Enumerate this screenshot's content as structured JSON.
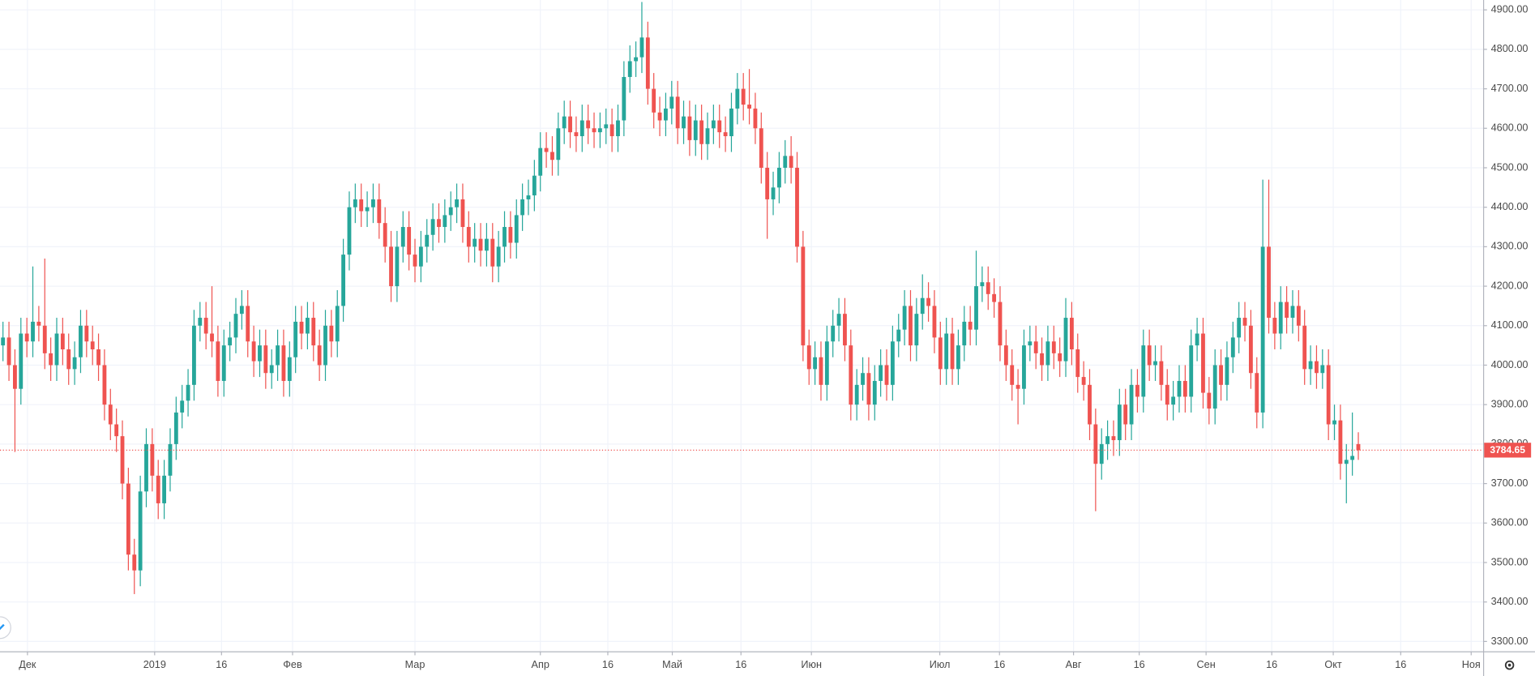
{
  "chart_data": {
    "type": "candlestick",
    "up_color": "#26a69a",
    "down_color": "#ef5350",
    "grid": true,
    "xlim": [
      -0.5,
      247.9
    ],
    "xticks": [
      {
        "value": 4.1,
        "label": "Дек"
      },
      {
        "value": 25.4,
        "label": "2019"
      },
      {
        "value": 36.6,
        "label": "16"
      },
      {
        "value": 48.5,
        "label": "Фев"
      },
      {
        "value": 69,
        "label": "Мар"
      },
      {
        "value": 90,
        "label": "Апр"
      },
      {
        "value": 101.3,
        "label": "16"
      },
      {
        "value": 112.1,
        "label": "Май"
      },
      {
        "value": 123.6,
        "label": "16"
      },
      {
        "value": 135.4,
        "label": "Июн"
      },
      {
        "value": 156.9,
        "label": "Июл"
      },
      {
        "value": 166.9,
        "label": "16"
      },
      {
        "value": 179.3,
        "label": "Авг"
      },
      {
        "value": 190.3,
        "label": "16"
      },
      {
        "value": 201.5,
        "label": "Сен"
      },
      {
        "value": 212.5,
        "label": "16"
      },
      {
        "value": 222.8,
        "label": "Окт"
      },
      {
        "value": 234.1,
        "label": "16"
      },
      {
        "value": 245.9,
        "label": "Ноя"
      }
    ],
    "ylim": [
      3275,
      4925
    ],
    "yticks": [
      {
        "value": 3300,
        "label": "3300.00"
      },
      {
        "value": 3400,
        "label": "3400.00"
      },
      {
        "value": 3500,
        "label": "3500.00"
      },
      {
        "value": 3600,
        "label": "3600.00"
      },
      {
        "value": 3700,
        "label": "3700.00"
      },
      {
        "value": 3800,
        "label": "3800.00"
      },
      {
        "value": 3900,
        "label": "3900.00"
      },
      {
        "value": 4000,
        "label": "4000.00"
      },
      {
        "value": 4100,
        "label": "4100.00"
      },
      {
        "value": 4200,
        "label": "4200.00"
      },
      {
        "value": 4300,
        "label": "4300.00"
      },
      {
        "value": 4400,
        "label": "4400.00"
      },
      {
        "value": 4500,
        "label": "4500.00"
      },
      {
        "value": 4600,
        "label": "4600.00"
      },
      {
        "value": 4700,
        "label": "4700.00"
      },
      {
        "value": 4800,
        "label": "4800.00"
      },
      {
        "value": 4900,
        "label": "4900.00"
      }
    ],
    "last_price": 3784.65,
    "open": [
      4050,
      4070,
      4000,
      3940,
      4080,
      4060,
      4110,
      4100,
      4030,
      4000,
      4080,
      4040,
      3990,
      4020,
      4100,
      4060,
      4040,
      4000,
      3900,
      3850,
      3820,
      3700,
      3520,
      3480,
      3680,
      3800,
      3720,
      3650,
      3720,
      3800,
      3880,
      3910,
      3950,
      4100,
      4120,
      4080,
      4060,
      3960,
      4050,
      4070,
      4130,
      4150,
      4060,
      4010,
      4050,
      3980,
      4000,
      4050,
      3960,
      4020,
      4110,
      4080,
      4120,
      4050,
      4000,
      4100,
      4060,
      4150,
      4280,
      4400,
      4420,
      4390,
      4400,
      4420,
      4360,
      4300,
      4200,
      4300,
      4350,
      4280,
      4250,
      4300,
      4330,
      4370,
      4350,
      4380,
      4400,
      4420,
      4350,
      4300,
      4320,
      4290,
      4320,
      4250,
      4300,
      4350,
      4310,
      4380,
      4420,
      4430,
      4480,
      4550,
      4540,
      4520,
      4600,
      4630,
      4590,
      4580,
      4620,
      4600,
      4590,
      4600,
      4610,
      4580,
      4620,
      4730,
      4770,
      4780,
      4830,
      4700,
      4640,
      4620,
      4650,
      4680,
      4600,
      4630,
      4570,
      4620,
      4560,
      4600,
      4620,
      4590,
      4580,
      4650,
      4700,
      4660,
      4650,
      4600,
      4500,
      4420,
      4450,
      4500,
      4530,
      4500,
      4300,
      4050,
      3990,
      4020,
      3950,
      4060,
      4100,
      4130,
      4050,
      3900,
      3950,
      3980,
      3900,
      3960,
      4000,
      3950,
      4060,
      4090,
      4150,
      4050,
      4130,
      4170,
      4150,
      4070,
      3990,
      4080,
      3990,
      4050,
      4110,
      4090,
      4200,
      4210,
      4180,
      4160,
      4050,
      4000,
      3950,
      3940,
      4050,
      4060,
      4030,
      4000,
      4060,
      4030,
      4010,
      4120,
      4040,
      3970,
      3950,
      3850,
      3750,
      3800,
      3820,
      3810,
      3900,
      3850,
      3950,
      3920,
      4050,
      4000,
      4010,
      3950,
      3900,
      3920,
      3960,
      3920,
      4050,
      4080,
      3930,
      3890,
      4000,
      3950,
      4020,
      4070,
      4120,
      4100,
      3980,
      3880,
      4300,
      4120,
      4080,
      4160,
      4120,
      4150,
      4100,
      3990,
      4010,
      3980,
      4000,
      3850,
      3860,
      3750,
      3760,
      3800
    ],
    "high": [
      4110,
      4110,
      4040,
      4120,
      4120,
      4250,
      4150,
      4270,
      4070,
      4120,
      4120,
      4080,
      4060,
      4140,
      4140,
      4100,
      4080,
      4040,
      3940,
      3890,
      3860,
      3740,
      3560,
      3720,
      3840,
      3840,
      3760,
      3760,
      3840,
      3920,
      3950,
      3990,
      4140,
      4160,
      4160,
      4200,
      4100,
      4090,
      4110,
      4170,
      4190,
      4190,
      4100,
      4090,
      4090,
      4040,
      4090,
      4090,
      4060,
      4150,
      4150,
      4160,
      4160,
      4090,
      4140,
      4140,
      4190,
      4320,
      4440,
      4460,
      4460,
      4440,
      4460,
      4460,
      4400,
      4340,
      4340,
      4390,
      4390,
      4320,
      4340,
      4370,
      4410,
      4410,
      4420,
      4440,
      4460,
      4460,
      4390,
      4360,
      4360,
      4360,
      4360,
      4340,
      4390,
      4390,
      4420,
      4460,
      4470,
      4520,
      4590,
      4590,
      4580,
      4640,
      4670,
      4670,
      4630,
      4660,
      4660,
      4640,
      4640,
      4650,
      4650,
      4660,
      4770,
      4810,
      4820,
      4920,
      4870,
      4740,
      4680,
      4690,
      4720,
      4720,
      4670,
      4670,
      4660,
      4660,
      4640,
      4660,
      4660,
      4630,
      4690,
      4740,
      4740,
      4750,
      4690,
      4640,
      4540,
      4490,
      4540,
      4570,
      4580,
      4540,
      4340,
      4090,
      4060,
      4060,
      4100,
      4140,
      4170,
      4170,
      4090,
      3990,
      4020,
      4020,
      4000,
      4040,
      4040,
      4100,
      4130,
      4190,
      4190,
      4170,
      4230,
      4210,
      4190,
      4110,
      4120,
      4120,
      4090,
      4150,
      4150,
      4290,
      4250,
      4250,
      4220,
      4200,
      4090,
      4040,
      3990,
      4090,
      4100,
      4100,
      4070,
      4100,
      4100,
      4070,
      4170,
      4160,
      4080,
      4010,
      3990,
      3890,
      3840,
      3860,
      3860,
      3940,
      3940,
      3990,
      3990,
      4090,
      4090,
      4050,
      4050,
      3990,
      3960,
      4000,
      4000,
      4090,
      4120,
      4120,
      3970,
      4040,
      4040,
      4060,
      4110,
      4160,
      4160,
      4140,
      4020,
      4470,
      4470,
      4160,
      4200,
      4200,
      4190,
      4190,
      4140,
      4050,
      4050,
      4040,
      4040,
      3900,
      3900,
      3800,
      3880,
      3830
    ],
    "low": [
      4010,
      3960,
      3780,
      3900,
      4020,
      4020,
      4060,
      3990,
      3960,
      3960,
      4000,
      3950,
      3950,
      3980,
      4020,
      4000,
      3960,
      3860,
      3810,
      3780,
      3660,
      3480,
      3420,
      3440,
      3640,
      3680,
      3610,
      3610,
      3680,
      3760,
      3840,
      3870,
      3910,
      4060,
      4040,
      4020,
      3920,
      3920,
      4010,
      4030,
      4090,
      4020,
      3970,
      3970,
      3940,
      3940,
      3960,
      3920,
      3920,
      3980,
      4040,
      4040,
      4010,
      3960,
      3960,
      4020,
      4020,
      4110,
      4240,
      4360,
      4350,
      4350,
      4360,
      4320,
      4260,
      4160,
      4160,
      4260,
      4240,
      4210,
      4210,
      4260,
      4290,
      4310,
      4310,
      4340,
      4360,
      4310,
      4260,
      4260,
      4250,
      4250,
      4210,
      4210,
      4260,
      4270,
      4270,
      4340,
      4380,
      4390,
      4440,
      4500,
      4480,
      4480,
      4560,
      4550,
      4540,
      4540,
      4560,
      4550,
      4550,
      4560,
      4540,
      4540,
      4580,
      4690,
      4730,
      4740,
      4660,
      4600,
      4580,
      4580,
      4610,
      4560,
      4560,
      4530,
      4530,
      4520,
      4520,
      4560,
      4550,
      4540,
      4540,
      4610,
      4620,
      4610,
      4560,
      4460,
      4320,
      4380,
      4410,
      4460,
      4460,
      4260,
      4010,
      3950,
      3950,
      3910,
      3910,
      4020,
      4060,
      4010,
      3860,
      3860,
      3910,
      3860,
      3860,
      3920,
      3910,
      3910,
      4020,
      4050,
      4010,
      4010,
      4090,
      4110,
      4030,
      3950,
      3950,
      3950,
      3950,
      4010,
      4050,
      4050,
      4160,
      4140,
      4120,
      4010,
      3960,
      3910,
      3850,
      3900,
      4010,
      3990,
      3960,
      3960,
      3990,
      3970,
      3970,
      4000,
      3930,
      3910,
      3810,
      3630,
      3710,
      3760,
      3770,
      3770,
      3810,
      3810,
      3880,
      3880,
      3960,
      3960,
      3910,
      3860,
      3860,
      3880,
      3880,
      3880,
      4010,
      3890,
      3850,
      3850,
      3910,
      3910,
      3980,
      4030,
      4060,
      3940,
      3840,
      3840,
      4080,
      4040,
      4040,
      4080,
      4080,
      4060,
      3950,
      3950,
      3940,
      3940,
      3810,
      3810,
      3710,
      3650,
      3720,
      3760
    ],
    "close": [
      4070,
      4000,
      3940,
      4080,
      4060,
      4110,
      4100,
      4030,
      4000,
      4080,
      4040,
      3990,
      4020,
      4100,
      4060,
      4040,
      4000,
      3900,
      3850,
      3820,
      3700,
      3520,
      3480,
      3680,
      3800,
      3720,
      3650,
      3720,
      3800,
      3880,
      3910,
      3950,
      4100,
      4120,
      4080,
      4060,
      3960,
      4050,
      4070,
      4130,
      4150,
      4060,
      4010,
      4050,
      3980,
      4000,
      4050,
      3960,
      4020,
      4110,
      4080,
      4120,
      4050,
      4000,
      4100,
      4060,
      4150,
      4280,
      4400,
      4420,
      4390,
      4400,
      4420,
      4360,
      4300,
      4200,
      4300,
      4350,
      4280,
      4250,
      4300,
      4330,
      4370,
      4350,
      4380,
      4400,
      4420,
      4350,
      4300,
      4320,
      4290,
      4320,
      4250,
      4300,
      4350,
      4310,
      4380,
      4420,
      4430,
      4480,
      4550,
      4540,
      4520,
      4600,
      4630,
      4590,
      4580,
      4620,
      4600,
      4590,
      4600,
      4610,
      4580,
      4620,
      4730,
      4770,
      4780,
      4830,
      4700,
      4640,
      4620,
      4650,
      4680,
      4600,
      4630,
      4570,
      4620,
      4560,
      4600,
      4620,
      4590,
      4580,
      4650,
      4700,
      4660,
      4650,
      4600,
      4500,
      4420,
      4450,
      4500,
      4530,
      4500,
      4300,
      4050,
      3990,
      4020,
      3950,
      4060,
      4100,
      4130,
      4050,
      3900,
      3950,
      3980,
      3900,
      3960,
      4000,
      3950,
      4060,
      4090,
      4150,
      4050,
      4130,
      4170,
      4150,
      4070,
      3990,
      4080,
      3990,
      4050,
      4110,
      4090,
      4200,
      4210,
      4180,
      4160,
      4050,
      4000,
      3950,
      3940,
      4050,
      4060,
      4030,
      4000,
      4060,
      4030,
      4010,
      4120,
      4040,
      3970,
      3950,
      3850,
      3750,
      3800,
      3820,
      3810,
      3900,
      3850,
      3950,
      3920,
      4050,
      4000,
      4010,
      3950,
      3900,
      3920,
      3960,
      3920,
      4050,
      4080,
      3930,
      3890,
      4000,
      3950,
      4020,
      4070,
      4120,
      4100,
      3980,
      3880,
      4300,
      4120,
      4080,
      4160,
      4120,
      4150,
      4100,
      3990,
      4010,
      3980,
      4000,
      3850,
      3860,
      3750,
      3760,
      3770,
      3784.65
    ]
  }
}
